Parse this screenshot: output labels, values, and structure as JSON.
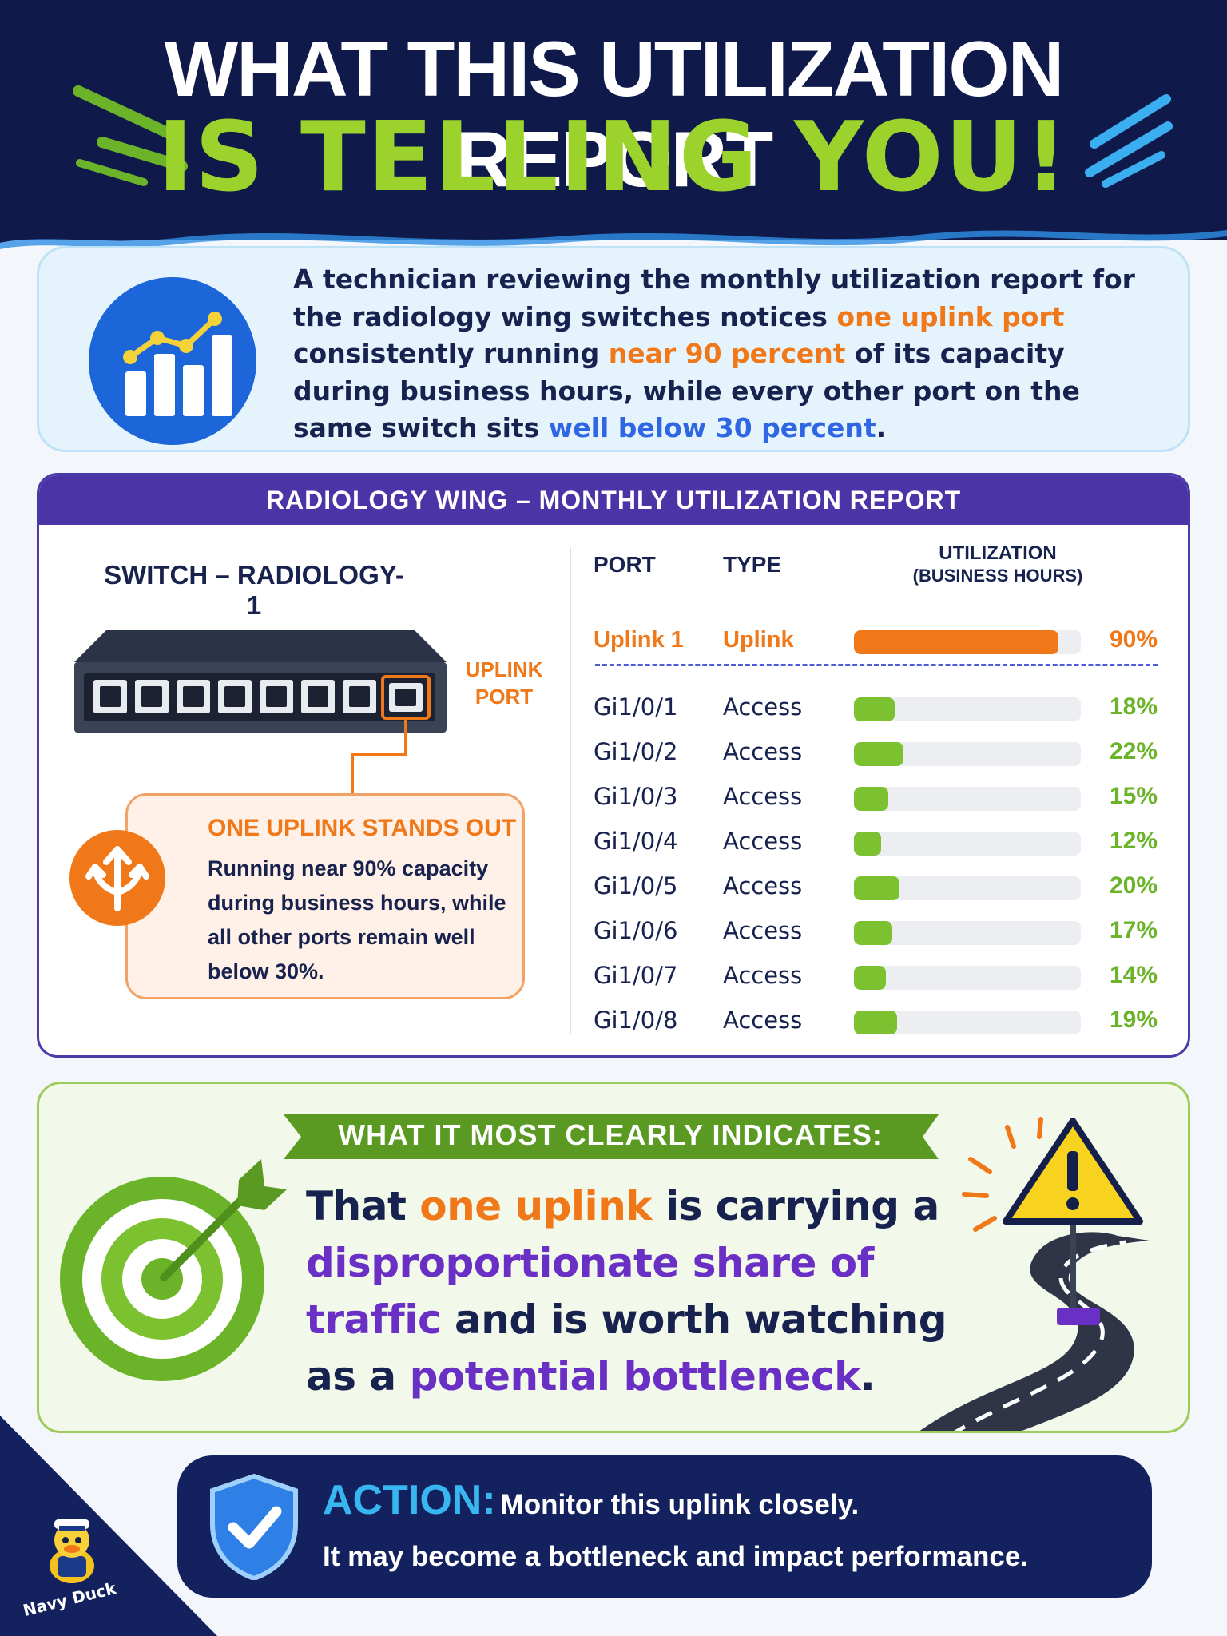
{
  "header": {
    "title_line1": "WHAT THIS UTILIZATION REPORT",
    "title_line2": "IS TELLING YOU!"
  },
  "intro": {
    "icon": "bar-chart-trend-icon",
    "text_1": "A technician reviewing the monthly utilization report for the radiology wing switches notices ",
    "highlight_1": "one uplink port",
    "text_2": " consistently running ",
    "highlight_2": "near 90 percent",
    "text_3": " of its capacity during business hours, while every other port on the same switch sits ",
    "highlight_3": "well below 30 percent",
    "text_4": "."
  },
  "report": {
    "title": "RADIOLOGY WING – MONTHLY UTILIZATION REPORT",
    "switch_title": "SWITCH – RADIOLOGY-1",
    "uplink_tag": "UPLINK PORT",
    "callout": {
      "icon": "trident-arrows-icon",
      "title": "ONE UPLINK STANDS OUT",
      "body": "Running near 90% capacity during business hours, while all other ports remain well below 30%."
    },
    "columns": {
      "port": "PORT",
      "type": "TYPE",
      "util": "UTILIZATION",
      "util_sub": "(BUSINESS HOURS)"
    },
    "rows": [
      {
        "port": "Uplink 1",
        "type": "Uplink",
        "pct": 90,
        "pct_label": "90%"
      },
      {
        "port": "Gi1/0/1",
        "type": "Access",
        "pct": 18,
        "pct_label": "18%"
      },
      {
        "port": "Gi1/0/2",
        "type": "Access",
        "pct": 22,
        "pct_label": "22%"
      },
      {
        "port": "Gi1/0/3",
        "type": "Access",
        "pct": 15,
        "pct_label": "15%"
      },
      {
        "port": "Gi1/0/4",
        "type": "Access",
        "pct": 12,
        "pct_label": "12%"
      },
      {
        "port": "Gi1/0/5",
        "type": "Access",
        "pct": 20,
        "pct_label": "20%"
      },
      {
        "port": "Gi1/0/6",
        "type": "Access",
        "pct": 17,
        "pct_label": "17%"
      },
      {
        "port": "Gi1/0/7",
        "type": "Access",
        "pct": 14,
        "pct_label": "14%"
      },
      {
        "port": "Gi1/0/8",
        "type": "Access",
        "pct": 19,
        "pct_label": "19%"
      }
    ]
  },
  "indicates": {
    "ribbon": "WHAT IT MOST CLEARLY INDICATES:",
    "icon_target": "target-bullseye-icon",
    "icon_warning": "warning-sign-road-icon",
    "t1": "That ",
    "h1": "one uplink",
    "t2": " is carrying a ",
    "h2": "disproportionate share of traffic",
    "t3": " and is worth watching as a ",
    "h3": "potential bottleneck",
    "t4": "."
  },
  "action": {
    "icon": "shield-check-icon",
    "label": "ACTION:",
    "line1": "Monitor this uplink closely.",
    "line2": "It may become a bottleneck and impact performance."
  },
  "brand": {
    "icon": "duck-sailor-mascot",
    "name": "Navy Duck"
  },
  "colors": {
    "navy": "#0f1a4a",
    "lime": "#9bd22b",
    "orange": "#f07818",
    "purple": "#4b35a6",
    "green_bar": "#7cc230",
    "blue": "#2e66e4"
  }
}
